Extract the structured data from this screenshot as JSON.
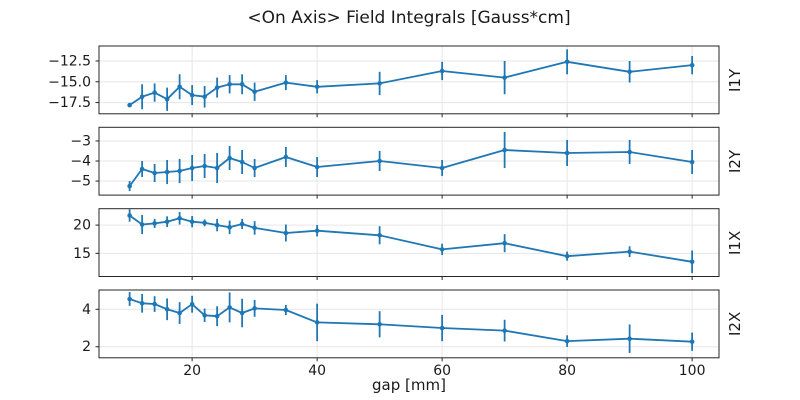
{
  "chart_data": {
    "type": "line",
    "title": "<On Axis> Field Integrals [Gauss*cm]",
    "xlabel": "gap [mm]",
    "legend": "none",
    "grid": true,
    "line_color": "#1f77b4",
    "grid_color": "#e6e6e6",
    "axis_color": "#262626",
    "text_color": "#1a1a1a",
    "x": [
      10,
      12,
      14,
      16,
      18,
      20,
      22,
      24,
      26,
      28,
      30,
      35,
      40,
      50,
      60,
      70,
      80,
      90,
      100
    ],
    "xlim": [
      5.1,
      104.3
    ],
    "xticks": [
      20,
      40,
      60,
      80,
      100
    ],
    "xtick_labels": [
      "20",
      "40",
      "60",
      "80",
      "100"
    ],
    "panels": [
      {
        "label": "I1Y",
        "ylim": [
          -18.85,
          -10.7
        ],
        "yticks": [
          -12.5,
          -15.0,
          -17.5
        ],
        "ytick_labels": [
          "−12.5",
          "−15.0",
          "−17.5"
        ],
        "values": [
          -17.8,
          -16.8,
          -16.3,
          -17.1,
          -15.6,
          -16.6,
          -16.8,
          -15.7,
          -15.3,
          -15.3,
          -16.2,
          -15.1,
          -15.6,
          -15.2,
          -13.7,
          -14.5,
          -12.6,
          -13.8,
          -13.0
        ],
        "errors": [
          0.25,
          1.5,
          1.1,
          1.4,
          1.5,
          1.2,
          1.3,
          1.2,
          1.1,
          1.2,
          1.1,
          0.9,
          0.8,
          1.4,
          1.1,
          2.0,
          1.5,
          1.3,
          1.1
        ]
      },
      {
        "label": "I2Y",
        "ylim": [
          -5.7,
          -2.32
        ],
        "yticks": [
          -3,
          -4,
          -5
        ],
        "ytick_labels": [
          "−3",
          "−4",
          "−5"
        ],
        "values": [
          -5.25,
          -4.4,
          -4.6,
          -4.55,
          -4.5,
          -4.35,
          -4.25,
          -4.35,
          -3.85,
          -4.05,
          -4.35,
          -3.8,
          -4.3,
          -4.0,
          -4.35,
          -3.45,
          -3.6,
          -3.55,
          -4.05
        ],
        "errors": [
          0.25,
          0.4,
          0.45,
          0.6,
          0.6,
          0.65,
          0.6,
          0.75,
          0.6,
          0.6,
          0.45,
          0.5,
          0.5,
          0.5,
          0.4,
          0.9,
          0.65,
          0.6,
          0.6
        ]
      },
      {
        "label": "I1X",
        "ylim": [
          10.9,
          22.9
        ],
        "yticks": [
          20,
          15
        ],
        "ytick_labels": [
          "20",
          "15"
        ],
        "values": [
          21.7,
          20.1,
          20.3,
          20.6,
          21.2,
          20.6,
          20.4,
          20.0,
          19.6,
          20.2,
          19.5,
          18.6,
          19.0,
          18.2,
          15.7,
          16.8,
          14.5,
          15.3,
          13.5
        ],
        "errors": [
          1.1,
          1.7,
          0.8,
          0.95,
          1.1,
          1.0,
          0.6,
          1.1,
          1.2,
          0.9,
          1.2,
          1.5,
          1.0,
          1.6,
          1.0,
          1.6,
          0.8,
          0.95,
          2.0
        ]
      },
      {
        "label": "I2X",
        "ylim": [
          1.41,
          5.03
        ],
        "yticks": [
          4,
          2
        ],
        "ytick_labels": [
          "4",
          "2"
        ],
        "values": [
          4.55,
          4.32,
          4.28,
          4.0,
          3.8,
          4.27,
          3.68,
          3.63,
          4.1,
          3.8,
          4.05,
          3.96,
          3.3,
          3.2,
          3.0,
          2.86,
          2.3,
          2.43,
          2.27
        ],
        "errors": [
          0.37,
          0.5,
          0.42,
          0.58,
          0.58,
          0.45,
          0.36,
          0.53,
          0.8,
          0.76,
          0.45,
          0.27,
          1.0,
          0.7,
          0.7,
          0.58,
          0.31,
          0.76,
          0.49
        ]
      }
    ]
  }
}
